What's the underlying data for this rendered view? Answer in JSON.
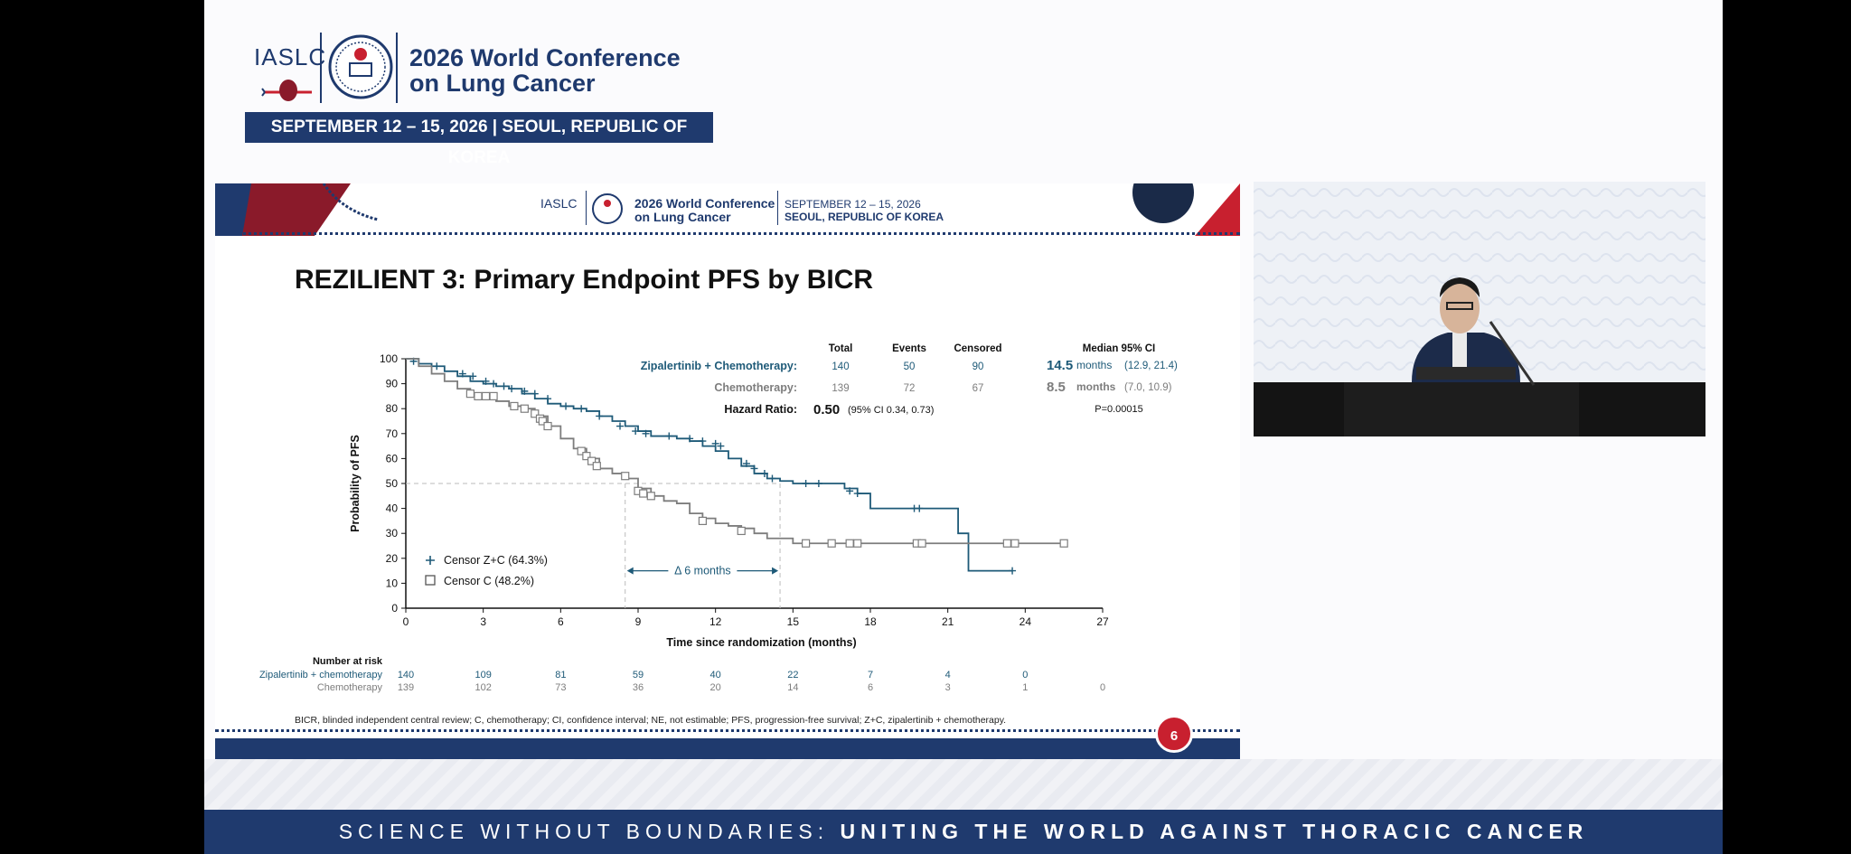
{
  "conference": {
    "org": "IASLC",
    "seal_year": "2026",
    "name_line1": "2026 World Conference",
    "name_line2": "on Lung Cancer",
    "date_location": "SEPTEMBER 12 – 15, 2026  |  SEOUL, REPUBLIC OF KOREA",
    "header_date": "SEPTEMBER 12 – 15, 2026",
    "header_location": "SEOUL, REPUBLIC OF KOREA"
  },
  "slide": {
    "title": "REZILIENT 3: Primary Endpoint PFS by BICR",
    "page_number": "6",
    "footnote": "BICR, blinded independent central review; C, chemotherapy; CI, confidence interval; NE, not estimable; PFS, progression-free survival; Z+C, zipalertinib + chemotherapy."
  },
  "slogan": {
    "part1": "SCIENCE WITHOUT BOUNDARIES: ",
    "part2": "UNITING THE WORLD AGAINST THORACIC CANCER"
  },
  "colors": {
    "navy": "#1f3a6e",
    "zc_series": "#1e5a78",
    "c_series": "#7d7d7d",
    "red": "#c8202f"
  },
  "chart_data": {
    "type": "line",
    "xlabel": "Time since randomization (months)",
    "ylabel": "Probability of PFS",
    "xlim": [
      0,
      27
    ],
    "ylim": [
      0,
      100
    ],
    "xticks": [
      0,
      3,
      6,
      9,
      12,
      15,
      18,
      21,
      24,
      27
    ],
    "yticks": [
      0,
      10,
      20,
      30,
      40,
      50,
      60,
      70,
      80,
      90,
      100
    ],
    "series": [
      {
        "name": "Zipalertinib + Chemotherapy:",
        "total": "140",
        "events": "50",
        "censored": "90",
        "median": "14.5",
        "median_unit": "months",
        "ci": "(12.9, 21.4)",
        "x": [
          0,
          0.5,
          1,
          1.5,
          2,
          2.5,
          3,
          3.5,
          4,
          4.5,
          5,
          5.5,
          6,
          6.5,
          7,
          7.5,
          8,
          8.5,
          9,
          9.5,
          10,
          10.5,
          11,
          11.5,
          12,
          12.5,
          13,
          13.5,
          14,
          14.5,
          15,
          16,
          17,
          17.5,
          18,
          19,
          20,
          21,
          21.4,
          21.8,
          23.5
        ],
        "y": [
          100,
          98,
          97,
          95,
          93,
          91,
          90,
          89,
          88,
          86,
          84,
          82,
          81,
          80,
          79,
          77,
          75,
          73,
          71,
          69,
          69,
          68,
          67,
          65,
          63,
          60,
          57,
          54,
          52,
          51,
          50,
          50,
          48,
          46,
          40,
          40,
          40,
          40,
          30,
          15,
          15
        ],
        "censor_x": [
          0.3,
          1.2,
          2.2,
          2.6,
          3.1,
          3.4,
          3.8,
          4.1,
          4.6,
          5.0,
          5.5,
          6.2,
          6.8,
          7.5,
          8.3,
          8.9,
          9.3,
          10.2,
          11.0,
          11.5,
          12.0,
          12.2,
          13.2,
          13.5,
          13.9,
          14.2,
          15.5,
          16.0,
          17.2,
          17.5,
          19.7,
          19.9,
          23.5
        ],
        "censor_y": [
          99,
          97,
          94,
          93,
          91,
          90,
          89,
          88,
          87,
          86,
          84,
          81,
          80,
          77,
          73,
          71,
          70,
          69,
          68,
          67,
          66,
          65,
          58,
          56,
          54,
          52,
          50,
          50,
          47,
          46,
          40,
          40,
          15
        ]
      },
      {
        "name": "Chemotherapy:",
        "total": "139",
        "events": "72",
        "censored": "67",
        "median": "8.5",
        "median_unit": "months",
        "ci": "(7.0, 10.9)",
        "x": [
          0,
          0.5,
          1,
          1.5,
          2,
          2.5,
          3,
          3.5,
          4,
          4.5,
          5,
          5.5,
          6,
          6.5,
          7,
          7.5,
          8,
          8.5,
          9,
          9.5,
          10,
          10.5,
          11,
          11.5,
          12,
          12.5,
          13,
          13.5,
          14,
          15,
          16,
          18,
          20,
          22,
          24,
          25.5
        ],
        "y": [
          100,
          97,
          94,
          91,
          88,
          86,
          85,
          83,
          81,
          80,
          77,
          73,
          68,
          64,
          60,
          56,
          54,
          52,
          48,
          45,
          43,
          42,
          38,
          36,
          34,
          33,
          32,
          30,
          28,
          26,
          26,
          26,
          26,
          26,
          26,
          26
        ],
        "censor_x": [
          2.5,
          2.8,
          3.1,
          3.4,
          4.2,
          4.6,
          5.0,
          5.2,
          5.3,
          5.5,
          6.8,
          7.0,
          7.2,
          7.4,
          8.5,
          9.0,
          9.2,
          9.5,
          11.5,
          13.0,
          15.5,
          16.5,
          17.2,
          17.5,
          19.8,
          20.0,
          23.3,
          23.6,
          25.5
        ],
        "censor_y": [
          86,
          85,
          85,
          85,
          81,
          80,
          78,
          76,
          75,
          73,
          63,
          61,
          59,
          57,
          53,
          47,
          46,
          45,
          35,
          31,
          26,
          26,
          26,
          26,
          26,
          26,
          26,
          26,
          26
        ]
      }
    ],
    "table_headers": {
      "total": "Total",
      "events": "Events",
      "censored": "Censored",
      "median": "Median 95% CI"
    },
    "hazard_ratio": {
      "label": "Hazard Ratio:",
      "value": "0.50",
      "ci": "(95% CI 0.34, 0.73)",
      "p": "P=0.00015"
    },
    "median_line": {
      "y": 50,
      "x1": 8.5,
      "x2": 14.5,
      "label": "Δ 6 months"
    },
    "legend": [
      {
        "symbol": "+",
        "label": "Censor Z+C (64.3%)"
      },
      {
        "symbol": "□",
        "label": "Censor C (48.2%)"
      }
    ],
    "risk_table": {
      "title": "Number at risk",
      "rows": [
        {
          "label": "Zipalertinib + chemotherapy",
          "values": [
            "140",
            "109",
            "81",
            "59",
            "40",
            "22",
            "7",
            "4",
            "0"
          ]
        },
        {
          "label": "Chemotherapy",
          "values": [
            "139",
            "102",
            "73",
            "36",
            "20",
            "14",
            "6",
            "3",
            "1",
            "0"
          ]
        }
      ]
    }
  }
}
